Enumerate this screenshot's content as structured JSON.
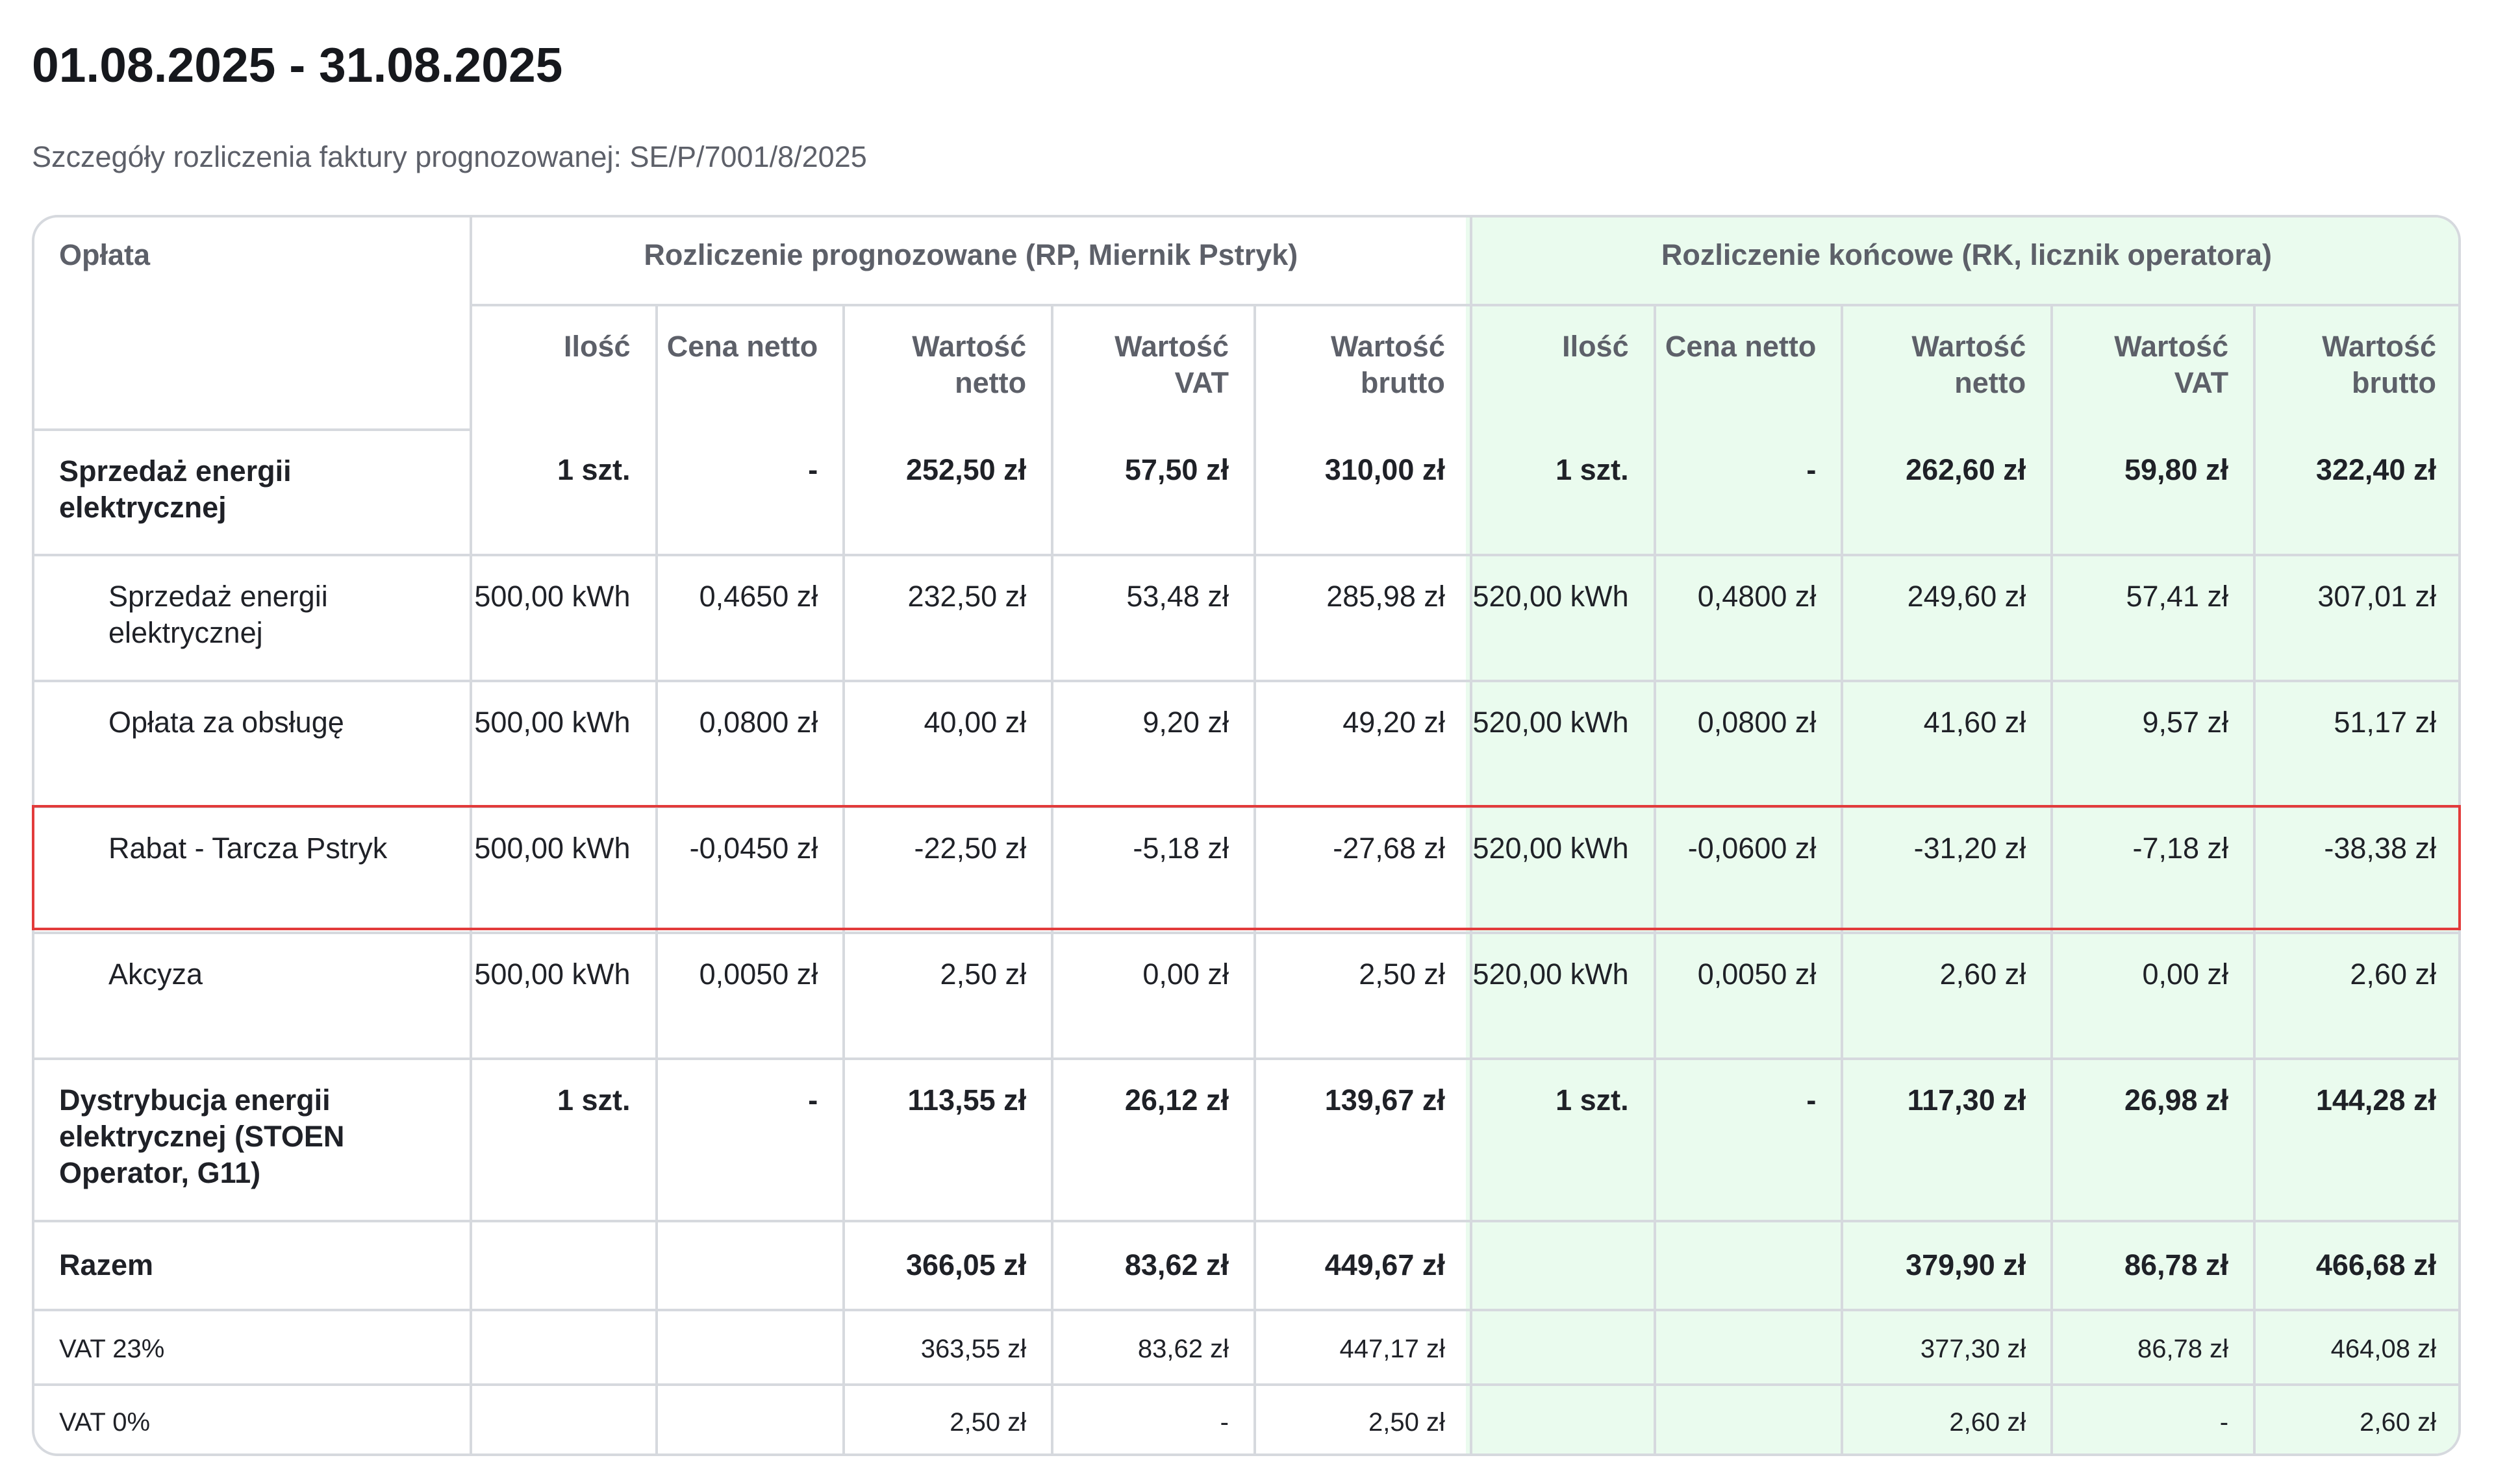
{
  "header": {
    "period": "01.08.2025 - 31.08.2025",
    "subtitle": "Szczegóły rozliczenia faktury prognozowanej: SE/P/7001/8/2025"
  },
  "table": {
    "first_column_header": "Opłata",
    "group_headers": [
      "Rozliczenie prognozowane (RP, Miernik Pstryk)",
      "Rozliczenie końcowe (RK, licznik operatora)"
    ],
    "sub_headers": [
      "Ilość",
      "Cena netto",
      "Wartość netto",
      "Wartość VAT",
      "Wartość brutto",
      "Ilość",
      "Cena netto",
      "Wartość netto",
      "Wartość VAT",
      "Wartość brutto"
    ],
    "rows": [
      {
        "label": "Sprzedaż energii elektrycznej",
        "cells": [
          "1 szt.",
          "-",
          "252,50 zł",
          "57,50 zł",
          "310,00 zł",
          "1 szt.",
          "-",
          "262,60 zł",
          "59,80 zł",
          "322,40 zł"
        ]
      },
      {
        "label": "Sprzedaż energii elektrycznej",
        "cells": [
          "500,00 kWh",
          "0,4650 zł",
          "232,50 zł",
          "53,48 zł",
          "285,98 zł",
          "520,00 kWh",
          "0,4800 zł",
          "249,60 zł",
          "57,41 zł",
          "307,01 zł"
        ]
      },
      {
        "label": "Opłata za obsługę",
        "cells": [
          "500,00 kWh",
          "0,0800 zł",
          "40,00 zł",
          "9,20 zł",
          "49,20 zł",
          "520,00 kWh",
          "0,0800 zł",
          "41,60 zł",
          "9,57 zł",
          "51,17 zł"
        ]
      },
      {
        "label": "Rabat - Tarcza Pstryk",
        "cells": [
          "500,00 kWh",
          "-0,0450 zł",
          "-22,50 zł",
          "-5,18 zł",
          "-27,68 zł",
          "520,00 kWh",
          "-0,0600 zł",
          "-31,20 zł",
          "-7,18 zł",
          "-38,38 zł"
        ]
      },
      {
        "label": "Akcyza",
        "cells": [
          "500,00 kWh",
          "0,0050 zł",
          "2,50 zł",
          "0,00 zł",
          "2,50 zł",
          "520,00 kWh",
          "0,0050 zł",
          "2,60 zł",
          "0,00 zł",
          "2,60 zł"
        ]
      },
      {
        "label": "Dystrybucja energii elektrycznej (STOEN Operator, G11)",
        "cells": [
          "1 szt.",
          "-",
          "113,55 zł",
          "26,12 zł",
          "139,67 zł",
          "1 szt.",
          "-",
          "117,30 zł",
          "26,98 zł",
          "144,28 zł"
        ]
      },
      {
        "label": "Razem",
        "cells": [
          "",
          "",
          "366,05 zł",
          "83,62 zł",
          "449,67 zł",
          "",
          "",
          "379,90 zł",
          "86,78 zł",
          "466,68 zł"
        ]
      },
      {
        "label": "VAT 23%",
        "cells": [
          "",
          "",
          "363,55 zł",
          "83,62 zł",
          "447,17 zł",
          "",
          "",
          "377,30 zł",
          "86,78 zł",
          "464,08 zł"
        ]
      },
      {
        "label": "VAT 0%",
        "cells": [
          "",
          "",
          "2,50 zł",
          "-",
          "2,50 zł",
          "",
          "",
          "2,60 zł",
          "-",
          "2,60 zł"
        ]
      }
    ]
  },
  "colors": {
    "final_settlement_bg": "#eafbee",
    "highlight_border": "#e23b3b",
    "grid_line": "#d6d9de"
  }
}
